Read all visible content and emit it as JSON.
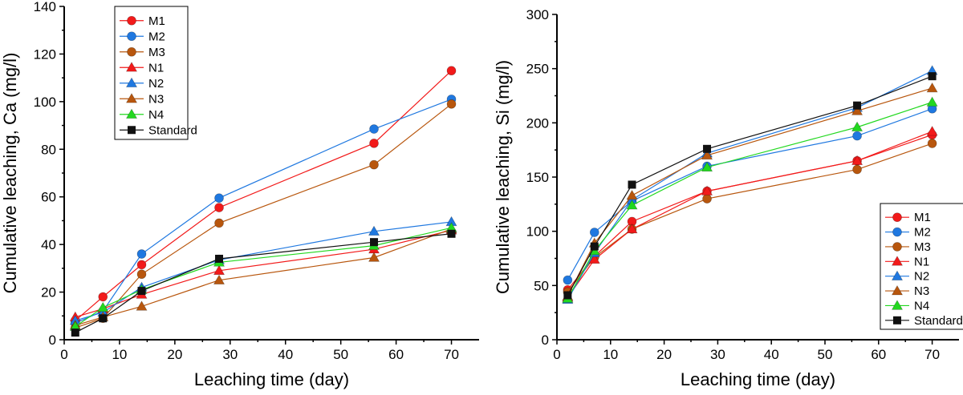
{
  "chart_data": [
    {
      "type": "line",
      "title": "",
      "xlabel": "Leaching time (day)",
      "ylabel": "Cumulative leaching, Ca (mg/l)",
      "xlim": [
        0,
        75
      ],
      "ylim": [
        0,
        140
      ],
      "xticks": [
        0,
        10,
        20,
        30,
        40,
        50,
        60,
        70
      ],
      "yticks": [
        0,
        20,
        40,
        60,
        80,
        100,
        120,
        140
      ],
      "legend_position": "top-left",
      "x": [
        2,
        7,
        14,
        28,
        56,
        70
      ],
      "series": [
        {
          "name": "M1",
          "marker": "circle",
          "color": "#f21a1a",
          "values": [
            8,
            18,
            31.5,
            55.5,
            82.5,
            113
          ]
        },
        {
          "name": "M2",
          "marker": "circle",
          "color": "#1f78e0",
          "values": [
            7,
            12,
            36,
            59.5,
            88.5,
            101
          ]
        },
        {
          "name": "M3",
          "marker": "circle",
          "color": "#b8560d",
          "values": [
            5,
            9,
            27.5,
            49,
            73.5,
            99
          ]
        },
        {
          "name": "N1",
          "marker": "triangle",
          "color": "#f21a1a",
          "values": [
            9.5,
            13,
            19,
            29,
            38,
            46
          ]
        },
        {
          "name": "N2",
          "marker": "triangle",
          "color": "#1f78e0",
          "values": [
            8,
            11.5,
            22,
            33.5,
            45.5,
            49.5
          ]
        },
        {
          "name": "N3",
          "marker": "triangle",
          "color": "#b8560d",
          "values": [
            6,
            9.5,
            14,
            25,
            34.5,
            46.5
          ]
        },
        {
          "name": "N4",
          "marker": "triangle",
          "color": "#22d81f",
          "values": [
            5.5,
            13.5,
            21,
            32.5,
            39.5,
            47
          ]
        },
        {
          "name": "Standard",
          "marker": "square",
          "color": "#111111",
          "values": [
            3,
            9,
            20.5,
            34,
            41,
            44.5
          ]
        }
      ]
    },
    {
      "type": "line",
      "title": "",
      "xlabel": "Leaching time (day)",
      "ylabel": "Cumulative leaching, Si (mg/l)",
      "xlim": [
        0,
        75
      ],
      "ylim": [
        0,
        300
      ],
      "xticks": [
        0,
        10,
        20,
        30,
        40,
        50,
        60,
        70
      ],
      "yticks": [
        0,
        50,
        100,
        150,
        200,
        250,
        300
      ],
      "legend_position": "bottom-right",
      "x": [
        2,
        7,
        14,
        28,
        56,
        70
      ],
      "series": [
        {
          "name": "M1",
          "marker": "circle",
          "color": "#f21a1a",
          "values": [
            46,
            77,
            109,
            137,
            165,
            189
          ]
        },
        {
          "name": "M2",
          "marker": "circle",
          "color": "#1f78e0",
          "values": [
            55,
            99,
            128,
            160,
            188,
            213
          ]
        },
        {
          "name": "M3",
          "marker": "circle",
          "color": "#b8560d",
          "values": [
            44,
            76,
            102,
            130,
            157,
            181
          ]
        },
        {
          "name": "N1",
          "marker": "triangle",
          "color": "#f21a1a",
          "values": [
            39,
            74,
            102,
            137,
            165,
            192
          ]
        },
        {
          "name": "N2",
          "marker": "triangle",
          "color": "#1f78e0",
          "values": [
            37,
            80,
            129,
            172,
            214,
            248
          ]
        },
        {
          "name": "N3",
          "marker": "triangle",
          "color": "#b8560d",
          "values": [
            40,
            89,
            133,
            170,
            211,
            232
          ]
        },
        {
          "name": "N4",
          "marker": "triangle",
          "color": "#22d81f",
          "values": [
            38,
            82,
            124,
            159,
            196,
            219
          ]
        },
        {
          "name": "Standard",
          "marker": "square",
          "color": "#111111",
          "values": [
            41,
            86,
            143,
            176,
            216,
            243
          ]
        }
      ]
    }
  ]
}
